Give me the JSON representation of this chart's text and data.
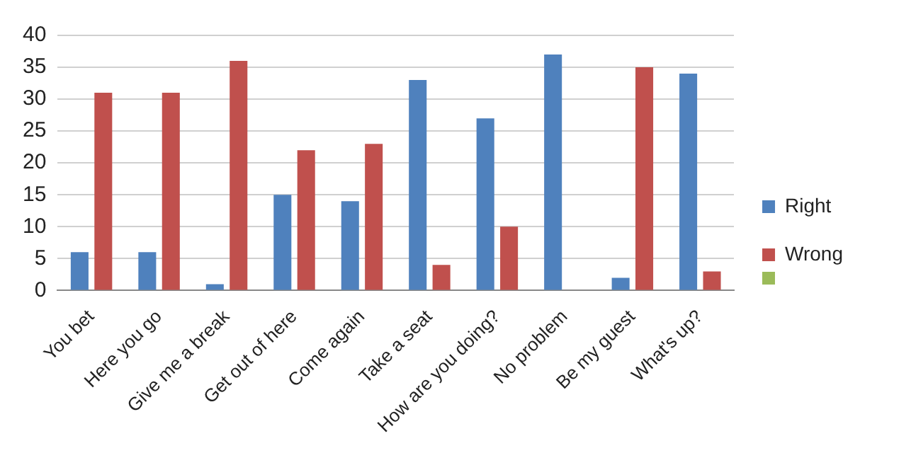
{
  "chart_data": {
    "type": "bar",
    "categories": [
      "You bet",
      "Here you go",
      "Give me a break",
      "Get out of here",
      "Come again",
      "Take a seat",
      "How are you doing?",
      "No problem",
      "Be my guest",
      "What's up?"
    ],
    "series": [
      {
        "name": "Right",
        "color": "#4f81bd",
        "values": [
          6,
          6,
          1,
          15,
          14,
          33,
          27,
          37,
          2,
          34
        ]
      },
      {
        "name": "Wrong",
        "color": "#c0504d",
        "values": [
          31,
          31,
          36,
          22,
          23,
          4,
          10,
          0,
          35,
          3
        ]
      }
    ],
    "ylim": [
      0,
      40
    ],
    "yticks": [
      0,
      5,
      10,
      15,
      20,
      25,
      30,
      35,
      40
    ],
    "grid": "y",
    "legend": "right"
  }
}
